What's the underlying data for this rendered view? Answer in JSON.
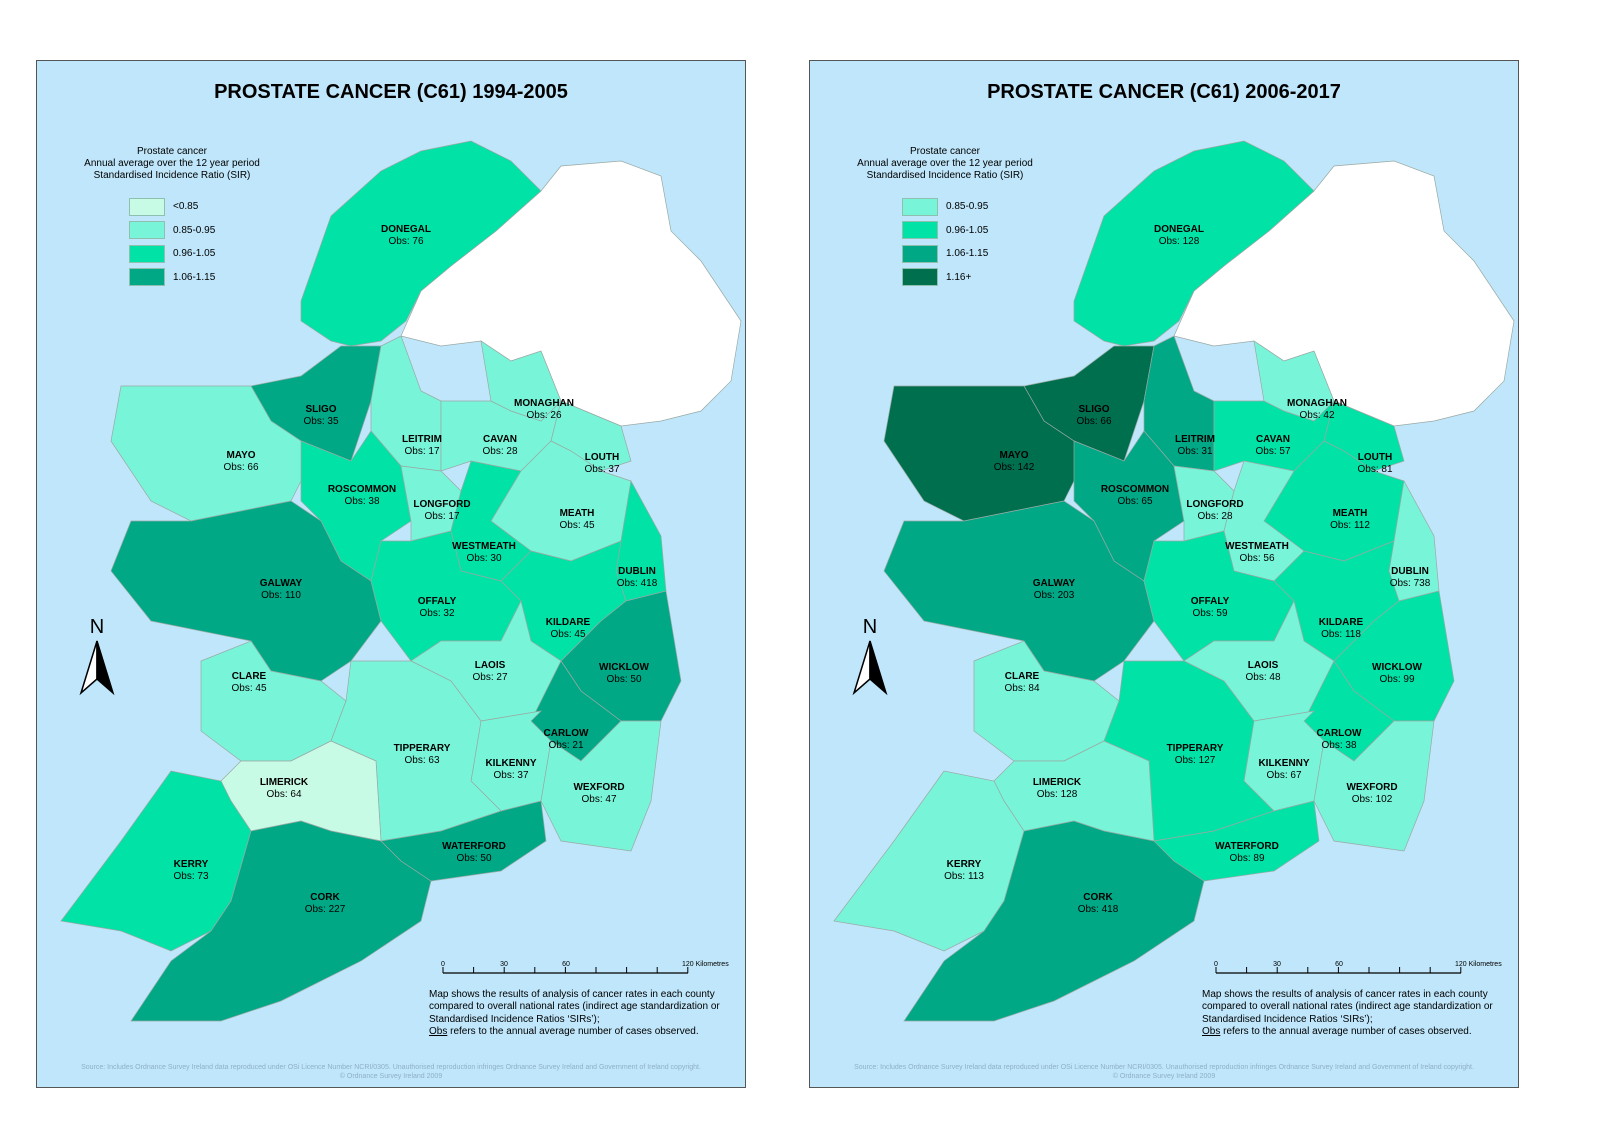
{
  "colors": {
    "background": "#bfe6fa",
    "c1": "#c8fbe6",
    "c2": "#78f5d8",
    "c3": "#00e2a6",
    "c4": "#00a885",
    "c5": "#006f4e",
    "ni": "#ffffff",
    "border": "#9aa9a4"
  },
  "classes": {
    "c1": "<0.85",
    "c2": "0.85-0.95",
    "c3": "0.96-1.05",
    "c4": "1.06-1.15",
    "c5": "1.16+"
  },
  "maps": [
    {
      "title": "PROSTATE CANCER (C61) 1994-2005",
      "legend": {
        "line1": "Prostate cancer",
        "line2": "Annual average over the 12 year period",
        "line3": "Standardised Incidence Ratio (SIR)",
        "items": [
          {
            "label": "<0.85",
            "color": "#c8fbe6"
          },
          {
            "label": "0.85-0.95",
            "color": "#78f5d8"
          },
          {
            "label": "0.96-1.05",
            "color": "#00e2a6"
          },
          {
            "label": "1.06-1.15",
            "color": "#00a885"
          }
        ]
      },
      "counties": {
        "DONEGAL": {
          "obs": "Obs: 76",
          "cls": "c3"
        },
        "SLIGO": {
          "obs": "Obs: 35",
          "cls": "c4"
        },
        "MAYO": {
          "obs": "Obs: 66",
          "cls": "c2"
        },
        "LEITRIM": {
          "obs": "Obs: 17",
          "cls": "c2"
        },
        "CAVAN": {
          "obs": "Obs: 28",
          "cls": "c2"
        },
        "MONAGHAN": {
          "obs": "Obs: 26",
          "cls": "c2"
        },
        "LOUTH": {
          "obs": "Obs: 37",
          "cls": "c2"
        },
        "ROSCOMMON": {
          "obs": "Obs: 38",
          "cls": "c3"
        },
        "LONGFORD": {
          "obs": "Obs: 17",
          "cls": "c2"
        },
        "MEATH": {
          "obs": "Obs: 45",
          "cls": "c2"
        },
        "WESTMEATH": {
          "obs": "Obs: 30",
          "cls": "c3"
        },
        "DUBLIN": {
          "obs": "Obs: 418",
          "cls": "c3"
        },
        "GALWAY": {
          "obs": "Obs: 110",
          "cls": "c4"
        },
        "OFFALY": {
          "obs": "Obs: 32",
          "cls": "c3"
        },
        "KILDARE": {
          "obs": "Obs: 45",
          "cls": "c3"
        },
        "CLARE": {
          "obs": "Obs: 45",
          "cls": "c2"
        },
        "LAOIS": {
          "obs": "Obs: 27",
          "cls": "c2"
        },
        "WICKLOW": {
          "obs": "Obs: 50",
          "cls": "c4"
        },
        "CARLOW": {
          "obs": "Obs: 21",
          "cls": "c4"
        },
        "TIPPERARY": {
          "obs": "Obs: 63",
          "cls": "c2"
        },
        "KILKENNY": {
          "obs": "Obs: 37",
          "cls": "c2"
        },
        "LIMERICK": {
          "obs": "Obs: 64",
          "cls": "c1"
        },
        "WEXFORD": {
          "obs": "Obs: 47",
          "cls": "c2"
        },
        "WATERFORD": {
          "obs": "Obs: 50",
          "cls": "c4"
        },
        "KERRY": {
          "obs": "Obs: 73",
          "cls": "c3"
        },
        "CORK": {
          "obs": "Obs: 227",
          "cls": "c4"
        }
      }
    },
    {
      "title": "PROSTATE CANCER (C61) 2006-2017",
      "legend": {
        "line1": "Prostate cancer",
        "line2": "Annual average over the 12 year period",
        "line3": "Standardised Incidence Ratio (SIR)",
        "items": [
          {
            "label": "0.85-0.95",
            "color": "#78f5d8"
          },
          {
            "label": "0.96-1.05",
            "color": "#00e2a6"
          },
          {
            "label": "1.06-1.15",
            "color": "#00a885"
          },
          {
            "label": "1.16+",
            "color": "#006f4e"
          }
        ]
      },
      "counties": {
        "DONEGAL": {
          "obs": "Obs: 128",
          "cls": "c3"
        },
        "SLIGO": {
          "obs": "Obs: 66",
          "cls": "c5"
        },
        "MAYO": {
          "obs": "Obs: 142",
          "cls": "c5"
        },
        "LEITRIM": {
          "obs": "Obs: 31",
          "cls": "c4"
        },
        "CAVAN": {
          "obs": "Obs: 57",
          "cls": "c3"
        },
        "MONAGHAN": {
          "obs": "Obs: 42",
          "cls": "c2"
        },
        "LOUTH": {
          "obs": "Obs: 81",
          "cls": "c3"
        },
        "ROSCOMMON": {
          "obs": "Obs: 65",
          "cls": "c4"
        },
        "LONGFORD": {
          "obs": "Obs: 28",
          "cls": "c2"
        },
        "MEATH": {
          "obs": "Obs: 112",
          "cls": "c3"
        },
        "WESTMEATH": {
          "obs": "Obs: 56",
          "cls": "c2"
        },
        "DUBLIN": {
          "obs": "Obs: 738",
          "cls": "c2"
        },
        "GALWAY": {
          "obs": "Obs: 203",
          "cls": "c4"
        },
        "OFFALY": {
          "obs": "Obs: 59",
          "cls": "c3"
        },
        "KILDARE": {
          "obs": "Obs: 118",
          "cls": "c3"
        },
        "CLARE": {
          "obs": "Obs: 84",
          "cls": "c2"
        },
        "LAOIS": {
          "obs": "Obs: 48",
          "cls": "c2"
        },
        "WICKLOW": {
          "obs": "Obs: 99",
          "cls": "c3"
        },
        "CARLOW": {
          "obs": "Obs: 38",
          "cls": "c3"
        },
        "TIPPERARY": {
          "obs": "Obs: 127",
          "cls": "c3"
        },
        "KILKENNY": {
          "obs": "Obs: 67",
          "cls": "c2"
        },
        "LIMERICK": {
          "obs": "Obs: 128",
          "cls": "c2"
        },
        "WEXFORD": {
          "obs": "Obs: 102",
          "cls": "c2"
        },
        "WATERFORD": {
          "obs": "Obs: 89",
          "cls": "c3"
        },
        "KERRY": {
          "obs": "Obs: 113",
          "cls": "c2"
        },
        "CORK": {
          "obs": "Obs: 418",
          "cls": "c4"
        }
      }
    }
  ],
  "north_label": "N",
  "scale": {
    "ticks": [
      "0",
      "30",
      "60",
      "120 Kilometres"
    ]
  },
  "note": {
    "text": "Map shows the results of analysis of cancer rates in each county compared to overall national rates (indirect age standardization or Standardised Incidence Ratios ‘SIRs’);",
    "obs_word": "Obs",
    "obs_text": " refers to the annual average number of cases observed."
  },
  "source": {
    "line1": "Source: Includes Ordnance Survey Ireland data reproduced under OSi Licence Number NCRI/0305. Unauthorised reproduction infringes Ordnance Survey Ireland and Government of Ireland copyright.",
    "line2": "© Ordnance Survey Ireland 2009"
  }
}
